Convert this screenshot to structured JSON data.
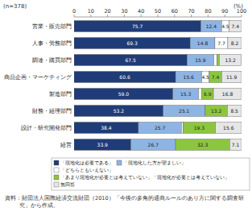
{
  "chart_data": {
    "type": "bar",
    "orientation": "horizontal",
    "stacked": true,
    "data_labels": true,
    "grid": false,
    "subtitle": "(n=378)",
    "xlabel": "(%)",
    "source": "資料：財団法人国際経済交流財団（2010）「今後の多角的通商ルールのあり方に関する調査研究」から作成。",
    "categories": [
      "営業・販売部門",
      "人事・労務部門",
      "調達・購買部門",
      "商品企画・マーケティング",
      "製造部門",
      "財務・経理部門",
      "設計・研究開発部門",
      "経営"
    ],
    "xlim": [
      0,
      100
    ],
    "xticks": [
      0,
      10,
      20,
      30,
      40,
      50,
      60,
      70,
      80,
      90,
      100
    ],
    "series": [
      {
        "name": "「現地化は必要である」",
        "color": "#1f3c78",
        "values": [
          75.7,
          69.3,
          67.5,
          60.6,
          59.0,
          53.2,
          38.4,
          33.9
        ]
      },
      {
        "name": "「現地化した方が望ましい」",
        "color": "#8eb4e3",
        "values": [
          12.4,
          14.8,
          15.9,
          15.6,
          15.3,
          25.1,
          25.7,
          26.7
        ]
      },
      {
        "name": "「どちらともいえない」",
        "color": "#ffffff",
        "values": [
          4.5,
          7.7,
          1.9,
          4.5,
          2.0,
          null,
          1.0,
          null
        ]
      },
      {
        "name": "「あまり現地化が必要とは考えていない」「現地化が必要とは考えていない」",
        "color": "#8cc63f",
        "values": [
          null,
          null,
          1.4,
          7.4,
          6.9,
          13.2,
          19.3,
          32.3
        ]
      },
      {
        "name": "無回答",
        "color": "#e6e6e6",
        "values": [
          7.4,
          8.2,
          13.2,
          11.9,
          16.8,
          8.5,
          15.6,
          7.1
        ]
      }
    ]
  }
}
